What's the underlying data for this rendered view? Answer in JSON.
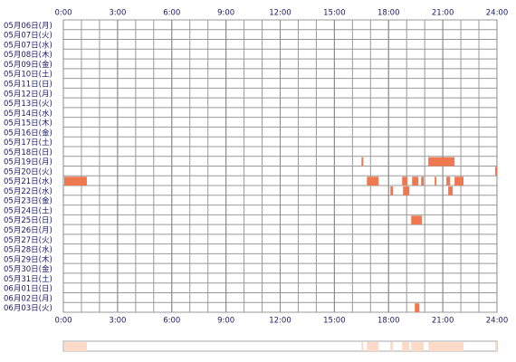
{
  "chart_data": {
    "type": "timeline",
    "color": "#f07850",
    "summary_color": "#fdd9c8",
    "xlim": [
      0,
      24
    ],
    "xticks": [
      {
        "value": 0,
        "label": "0:00"
      },
      {
        "value": 3,
        "label": "3:00"
      },
      {
        "value": 6,
        "label": "6:00"
      },
      {
        "value": 9,
        "label": "9:00"
      },
      {
        "value": 12,
        "label": "12:00"
      },
      {
        "value": 15,
        "label": "15:00"
      },
      {
        "value": 18,
        "label": "18:00"
      },
      {
        "value": 21,
        "label": "21:00"
      },
      {
        "value": 24,
        "label": "24:00"
      }
    ],
    "rows": [
      {
        "label": "05月06日(月)",
        "segments": []
      },
      {
        "label": "05月07日(火)",
        "segments": []
      },
      {
        "label": "05月07日(水)",
        "segments": []
      },
      {
        "label": "05月08日(木)",
        "segments": []
      },
      {
        "label": "05月09日(金)",
        "segments": []
      },
      {
        "label": "05月10日(土)",
        "segments": []
      },
      {
        "label": "05月11日(日)",
        "segments": []
      },
      {
        "label": "05月12日(月)",
        "segments": []
      },
      {
        "label": "05月13日(火)",
        "segments": []
      },
      {
        "label": "05月14日(水)",
        "segments": []
      },
      {
        "label": "05月15日(木)",
        "segments": []
      },
      {
        "label": "05月16日(金)",
        "segments": []
      },
      {
        "label": "05月17日(土)",
        "segments": []
      },
      {
        "label": "05月18日(日)",
        "segments": []
      },
      {
        "label": "05月19日(月)",
        "segments": [
          [
            16.5,
            16.6
          ],
          [
            20.2,
            21.65
          ]
        ]
      },
      {
        "label": "05月20日(火)",
        "segments": [
          [
            23.9,
            24
          ]
        ]
      },
      {
        "label": "05月21日(水)",
        "segments": [
          [
            0.05,
            1.3
          ],
          [
            16.8,
            17.45
          ],
          [
            18.75,
            19.05
          ],
          [
            19.3,
            19.65
          ],
          [
            19.8,
            19.95
          ],
          [
            20.55,
            20.65
          ],
          [
            21.2,
            21.4
          ],
          [
            21.65,
            22.15
          ]
        ]
      },
      {
        "label": "05月22日(水)",
        "segments": [
          [
            18.1,
            18.25
          ],
          [
            18.8,
            19.15
          ],
          [
            21.3,
            21.55
          ]
        ]
      },
      {
        "label": "05月23日(金)",
        "segments": []
      },
      {
        "label": "05月24日(土)",
        "segments": []
      },
      {
        "label": "05月25日(日)",
        "segments": [
          [
            19.25,
            19.85
          ]
        ]
      },
      {
        "label": "05月26日(月)",
        "segments": []
      },
      {
        "label": "05月27日(火)",
        "segments": []
      },
      {
        "label": "05月28日(水)",
        "segments": []
      },
      {
        "label": "05月29日(木)",
        "segments": []
      },
      {
        "label": "05月30日(金)",
        "segments": []
      },
      {
        "label": "05月31日(土)",
        "segments": []
      },
      {
        "label": "06月01日(日)",
        "segments": []
      },
      {
        "label": "06月02日(月)",
        "segments": []
      },
      {
        "label": "06月03日(火)",
        "segments": [
          [
            19.45,
            19.7
          ]
        ]
      }
    ]
  }
}
